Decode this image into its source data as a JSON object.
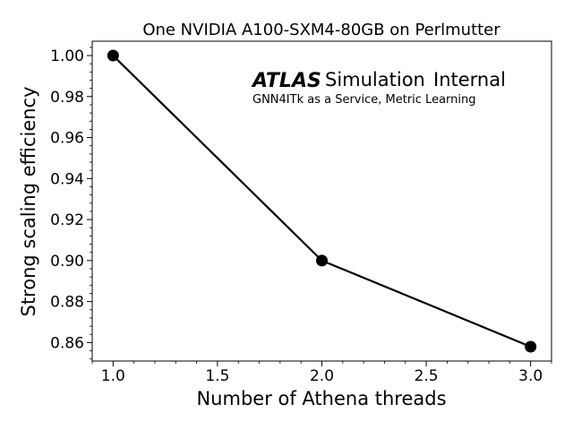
{
  "chart_data": {
    "type": "line",
    "title": "One NVIDIA A100-SXM4-80GB on Perlmutter",
    "xlabel": "Number of Athena threads",
    "ylabel": "Strong scaling efficiency",
    "xlim": [
      0.9,
      3.1
    ],
    "ylim": [
      0.851,
      1.007
    ],
    "x_ticks": [
      1.0,
      1.5,
      2.0,
      2.5,
      3.0
    ],
    "x_tick_labels": [
      "1.0",
      "1.5",
      "2.0",
      "2.5",
      "3.0"
    ],
    "y_ticks": [
      0.86,
      0.88,
      0.9,
      0.92,
      0.94,
      0.96,
      0.98,
      1.0
    ],
    "y_tick_labels": [
      "0.86",
      "0.88",
      "0.90",
      "0.92",
      "0.94",
      "0.96",
      "0.98",
      "1.00"
    ],
    "x_minor_step": 0.1,
    "y_minor_step": 0.004,
    "grid": false,
    "series": [
      {
        "x": [
          1.0,
          2.0,
          3.0
        ],
        "y": [
          1.0,
          0.9,
          0.858
        ],
        "color": "#000000",
        "marker": "circle"
      }
    ]
  },
  "annotation": {
    "brand": "ATLAS",
    "word1": "Simulation",
    "word2": "Internal",
    "subtitle": "GNN4ITk as a Service, Metric Learning"
  }
}
